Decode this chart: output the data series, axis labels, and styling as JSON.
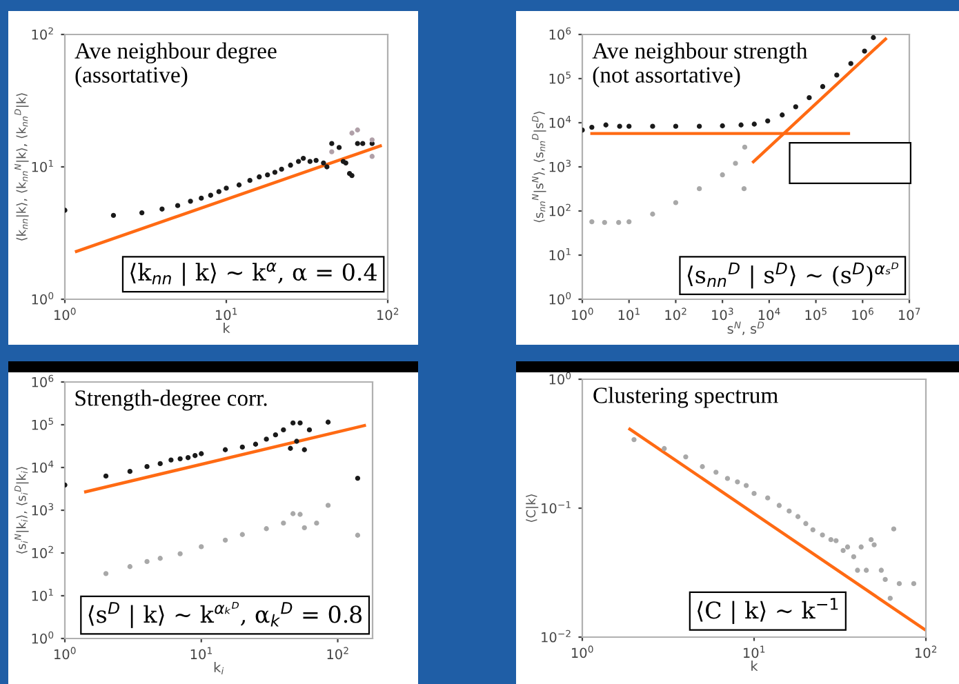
{
  "chart_data": [
    {
      "type": "scatter",
      "title": "Ave neighbour degree\n(assortative)",
      "xlabel": "k",
      "ylabel": "⟨k$_{nn}$|k⟩, ⟨k$_{nn}$$^{N}$|k⟩, ⟨k$_{nn}$$^{D}$|k⟩",
      "log": "xy",
      "marker": "circle",
      "xlim": [
        1,
        100
      ],
      "ylim": [
        1,
        100
      ],
      "xticks": [
        {
          "value": 1,
          "label": "10$^{0}$"
        },
        {
          "value": 10,
          "label": "10$^{1}$"
        },
        {
          "value": 100,
          "label": "10$^{2}$"
        }
      ],
      "yticks": [
        {
          "value": 1,
          "label": "10$^{0}$"
        },
        {
          "value": 10,
          "label": "10$^{1}$"
        },
        {
          "value": 100,
          "label": "10$^{2}$"
        }
      ],
      "annotations": [
        "⟨k$_{nn}$ | k⟩ ~ k$^{α}$, α = 0.4"
      ],
      "series": [
        {
          "color": "#1a1a1a",
          "x": [
            1,
            2,
            3,
            4,
            5,
            6,
            7,
            8,
            9,
            10,
            12,
            14,
            16,
            18,
            20,
            22,
            25,
            28,
            30,
            33,
            36,
            40,
            42,
            45,
            50,
            53,
            55,
            58,
            60,
            65,
            70,
            80
          ],
          "values": [
            4.7,
            4.3,
            4.5,
            4.8,
            5.1,
            5.5,
            5.8,
            6.1,
            6.5,
            6.9,
            7.3,
            7.9,
            8.4,
            8.7,
            9.1,
            9.6,
            10.3,
            11,
            11.6,
            11,
            11.2,
            10.7,
            10,
            15,
            14,
            11,
            10.7,
            8.9,
            8.6,
            15,
            15,
            15
          ]
        },
        {
          "color": "#b0a0a8",
          "x": [
            45,
            60,
            65,
            80,
            80
          ],
          "values": [
            13,
            18,
            19,
            16,
            12
          ]
        },
        {
          "type": "line",
          "marker": "none",
          "color": "#ff6a13",
          "x": [
            1.18,
            90
          ],
          "values": [
            2.3,
            14.4
          ]
        }
      ]
    },
    {
      "type": "scatter",
      "title": "Ave neighbour strength\n(not assortative)",
      "xlabel": "s$^{N}$, s$^{D}$",
      "ylabel": "⟨s$_{nn}$$^{N}$|s$^{N}$⟩, ⟨s$_{nn}$$^{D}$|s$^{D}$⟩",
      "log": "xy",
      "marker": "circle",
      "xlim": [
        1,
        10000000
      ],
      "ylim": [
        1,
        1000000
      ],
      "xticks": [
        {
          "value": 1,
          "label": "10$^{0}$"
        },
        {
          "value": 10,
          "label": "10$^{1}$"
        },
        {
          "value": 100,
          "label": "10$^{2}$"
        },
        {
          "value": 1000,
          "label": "10$^{3}$"
        },
        {
          "value": 10000,
          "label": "10$^{4}$"
        },
        {
          "value": 100000,
          "label": "10$^{5}$"
        },
        {
          "value": 1000000,
          "label": "10$^{6}$"
        },
        {
          "value": 10000000,
          "label": "10$^{7}$"
        }
      ],
      "yticks": [
        {
          "value": 1,
          "label": "10$^{0}$"
        },
        {
          "value": 10,
          "label": "10$^{1}$"
        },
        {
          "value": 100,
          "label": "10$^{2}$"
        },
        {
          "value": 1000,
          "label": "10$^{3}$"
        },
        {
          "value": 10000,
          "label": "10$^{4}$"
        },
        {
          "value": 100000,
          "label": "10$^{5}$"
        },
        {
          "value": 1000000,
          "label": "10$^{6}$"
        }
      ],
      "annotations": [
        "⟨s$_{nn}$$^{D}$ | s$^{D}$⟩ ~ (s$^{D}$)$^{αₛᴰ}$"
      ],
      "series": [
        {
          "color": "#1a1a1a",
          "x": [
            1,
            1.6,
            3.2,
            6.3,
            10,
            32,
            100,
            320,
            1000,
            2500,
            4800,
            9300,
            19000,
            37000,
            72000,
            140000,
            280000,
            560000,
            1100000,
            1700000
          ],
          "values": [
            6800,
            7900,
            8900,
            8300,
            8300,
            8300,
            8300,
            8300,
            8500,
            8900,
            9300,
            11000,
            15000,
            23000,
            37000,
            66000,
            120000,
            220000,
            420000,
            850000
          ]
        },
        {
          "color": "#a8a8a8",
          "x": [
            1.6,
            3,
            6,
            10,
            32,
            100,
            320,
            1000,
            1900,
            3000,
            2900
          ],
          "values": [
            57,
            55,
            55,
            57,
            85,
            155,
            320,
            660,
            1200,
            2800,
            320
          ]
        },
        {
          "type": "line",
          "marker": "none",
          "color": "#ff6a13",
          "x": [
            1.6,
            500000
          ],
          "values": [
            5700,
            5700
          ]
        },
        {
          "type": "line",
          "marker": "none",
          "color": "#ff6a13",
          "x": [
            4600,
            3100000
          ],
          "values": [
            1300,
            790000
          ]
        }
      ]
    },
    {
      "type": "scatter",
      "title": "Strength-degree corr.",
      "xlabel": "k$_{i}$",
      "ylabel": "⟨s$_{i}$$^{N}$|k$_{i}$⟩, ⟨s$_{i}$$^{D}$|k$_{i}$⟩",
      "log": "xy",
      "marker": "circle",
      "xlim": [
        1,
        180
      ],
      "ylim": [
        1,
        1000000
      ],
      "xticks": [
        {
          "value": 1,
          "label": "10$^{0}$"
        },
        {
          "value": 10,
          "label": "10$^{1}$"
        },
        {
          "value": 100,
          "label": "10$^{2}$"
        }
      ],
      "yticks": [
        {
          "value": 1,
          "label": "10$^{0}$"
        },
        {
          "value": 10,
          "label": "10$^{1}$"
        },
        {
          "value": 100,
          "label": "10$^{2}$"
        },
        {
          "value": 1000,
          "label": "10$^{3}$"
        },
        {
          "value": 10000,
          "label": "10$^{4}$"
        },
        {
          "value": 100000,
          "label": "10$^{5}$"
        },
        {
          "value": 1000000,
          "label": "10$^{6}$"
        }
      ],
      "annotations": [
        "⟨s$^{D}$ | k⟩ ~ k$^{αₖᴰ}$, α$_{k}$$^{D}$ = 0.8"
      ],
      "series": [
        {
          "color": "#1a1a1a",
          "x": [
            1,
            2,
            3,
            4,
            5,
            6,
            7,
            8,
            9,
            10,
            15,
            20,
            25,
            30,
            35,
            40,
            45,
            47,
            50,
            53,
            57,
            62,
            85,
            140
          ],
          "values": [
            3900,
            6300,
            8100,
            10500,
            12300,
            15000,
            16000,
            17000,
            19000,
            21000,
            26000,
            30000,
            35000,
            46000,
            58000,
            76000,
            28000,
            110000,
            41000,
            110000,
            26000,
            76000,
            115000,
            5600
          ]
        },
        {
          "color": "#a8a8a8",
          "x": [
            2,
            3,
            4,
            5,
            7,
            10,
            15,
            20,
            30,
            40,
            47,
            53,
            57,
            70,
            85,
            140
          ],
          "values": [
            33,
            48,
            63,
            75,
            96,
            140,
            200,
            270,
            370,
            500,
            830,
            800,
            390,
            500,
            1300,
            260
          ]
        },
        {
          "type": "line",
          "marker": "none",
          "color": "#ff6a13",
          "x": [
            1.42,
            157
          ],
          "values": [
            2700,
            96000
          ]
        }
      ]
    },
    {
      "type": "scatter",
      "title": "Clustering spectrum",
      "xlabel": "k",
      "ylabel": "⟨C|k⟩",
      "log": "xy",
      "marker": "circle",
      "xlim": [
        1,
        100
      ],
      "ylim": [
        0.01,
        1
      ],
      "xticks": [
        {
          "value": 1,
          "label": "10$^{0}$"
        },
        {
          "value": 10,
          "label": "10$^{1}$"
        },
        {
          "value": 100,
          "label": "10$^{2}$"
        }
      ],
      "yticks": [
        {
          "value": 0.01,
          "label": "10$^{−2}$"
        },
        {
          "value": 0.1,
          "label": "10$^{−1}$"
        },
        {
          "value": 1,
          "label": "10$^{0}$"
        }
      ],
      "annotations": [
        "⟨C | k⟩ ~ k$^{−1}$"
      ],
      "series": [
        {
          "color": "#a8a8a8",
          "x": [
            2,
            3,
            4,
            5,
            6,
            7,
            8,
            9,
            10,
            12,
            14,
            16,
            18,
            20,
            22,
            25,
            28,
            30,
            33,
            35,
            38,
            40,
            42,
            45,
            48,
            50,
            55,
            58,
            62,
            65,
            70,
            85
          ],
          "values": [
            0.34,
            0.29,
            0.25,
            0.21,
            0.19,
            0.17,
            0.16,
            0.15,
            0.13,
            0.12,
            0.105,
            0.095,
            0.086,
            0.076,
            0.068,
            0.062,
            0.057,
            0.056,
            0.047,
            0.05,
            0.042,
            0.033,
            0.05,
            0.033,
            0.057,
            0.052,
            0.033,
            0.028,
            0.02,
            0.069,
            0.026,
            0.026
          ]
        },
        {
          "type": "line",
          "marker": "none",
          "color": "#ff6a13",
          "x": [
            1.89,
            98
          ],
          "values": [
            0.41,
            0.0115
          ]
        }
      ]
    }
  ]
}
